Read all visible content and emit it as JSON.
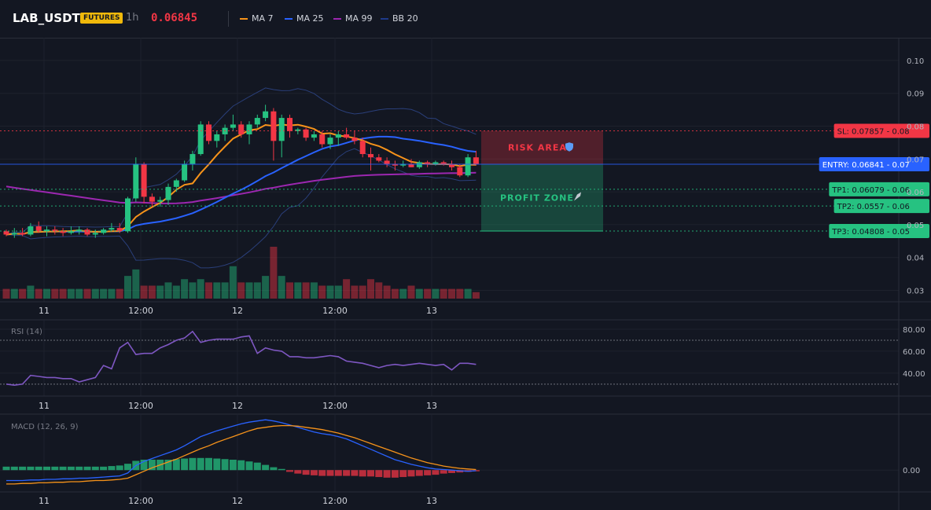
{
  "header": {
    "symbol": "LAB_USDT",
    "badge": "FUTURES",
    "timeframe": "1h",
    "last_price": "0.06845",
    "legend": [
      {
        "label": "MA 7",
        "color": "#f7931a"
      },
      {
        "label": "MA 25",
        "color": "#2962ff"
      },
      {
        "label": "MA 99",
        "color": "#9c27b0"
      },
      {
        "label": "BB 20",
        "color": "#1e3a8a"
      }
    ]
  },
  "colors": {
    "up": "#26c281",
    "down": "#f23645",
    "background": "#131722",
    "grid": "#1e222d"
  },
  "chart_data": [
    {
      "type": "candlestick",
      "panel": "price",
      "y_range": [
        0.0275,
        0.105
      ],
      "y_ticks": [
        "0.10",
        "0.09",
        "0.08",
        "0.07",
        "0.06",
        "0.05",
        "0.04",
        "0.03"
      ],
      "x_ticks": [
        "11",
        "12:00",
        "12",
        "12:00",
        "13"
      ],
      "x_tick_index": [
        6,
        18,
        30,
        42,
        54
      ],
      "candles": [
        [
          0.048,
          0.0485,
          0.0465,
          0.047
        ],
        [
          0.047,
          0.049,
          0.046,
          0.0475
        ],
        [
          0.0475,
          0.049,
          0.0465,
          0.047
        ],
        [
          0.047,
          0.0505,
          0.0465,
          0.0495
        ],
        [
          0.0495,
          0.051,
          0.0475,
          0.048
        ],
        [
          0.048,
          0.0495,
          0.0465,
          0.0485
        ],
        [
          0.0485,
          0.0495,
          0.047,
          0.048
        ],
        [
          0.048,
          0.049,
          0.0465,
          0.0475
        ],
        [
          0.0475,
          0.0495,
          0.047,
          0.048
        ],
        [
          0.048,
          0.0495,
          0.047,
          0.0485
        ],
        [
          0.0485,
          0.049,
          0.0465,
          0.047
        ],
        [
          0.047,
          0.0485,
          0.046,
          0.0475
        ],
        [
          0.0475,
          0.049,
          0.047,
          0.0485
        ],
        [
          0.0485,
          0.0505,
          0.048,
          0.049
        ],
        [
          0.049,
          0.0505,
          0.0475,
          0.048
        ],
        [
          0.048,
          0.0585,
          0.0475,
          0.058
        ],
        [
          0.058,
          0.0705,
          0.057,
          0.0685
        ],
        [
          0.0685,
          0.069,
          0.0565,
          0.0585
        ],
        [
          0.0585,
          0.0595,
          0.0555,
          0.057
        ],
        [
          0.057,
          0.0585,
          0.0555,
          0.0575
        ],
        [
          0.0575,
          0.0625,
          0.056,
          0.0615
        ],
        [
          0.0615,
          0.064,
          0.06,
          0.0635
        ],
        [
          0.0635,
          0.0695,
          0.063,
          0.0685
        ],
        [
          0.0685,
          0.0725,
          0.0665,
          0.0715
        ],
        [
          0.0715,
          0.0815,
          0.071,
          0.0805
        ],
        [
          0.0805,
          0.0815,
          0.0745,
          0.0755
        ],
        [
          0.0755,
          0.0785,
          0.0735,
          0.0775
        ],
        [
          0.0775,
          0.0805,
          0.0755,
          0.0795
        ],
        [
          0.0795,
          0.0835,
          0.0785,
          0.0805
        ],
        [
          0.0805,
          0.0815,
          0.0765,
          0.0775
        ],
        [
          0.0775,
          0.0815,
          0.0745,
          0.0805
        ],
        [
          0.0805,
          0.0835,
          0.0795,
          0.0825
        ],
        [
          0.0825,
          0.0865,
          0.0815,
          0.0845
        ],
        [
          0.0845,
          0.0855,
          0.0695,
          0.0755
        ],
        [
          0.0755,
          0.0835,
          0.0705,
          0.0825
        ],
        [
          0.0825,
          0.0835,
          0.0765,
          0.0785
        ],
        [
          0.0785,
          0.0795,
          0.0775,
          0.079
        ],
        [
          0.079,
          0.0795,
          0.0755,
          0.0765
        ],
        [
          0.0765,
          0.0785,
          0.0755,
          0.0775
        ],
        [
          0.0775,
          0.0785,
          0.0735,
          0.0745
        ],
        [
          0.0745,
          0.0775,
          0.073,
          0.0765
        ],
        [
          0.0765,
          0.0785,
          0.074,
          0.0775
        ],
        [
          0.0775,
          0.0795,
          0.076,
          0.0765
        ],
        [
          0.0765,
          0.0785,
          0.0745,
          0.0755
        ],
        [
          0.0755,
          0.0765,
          0.0705,
          0.0715
        ],
        [
          0.0715,
          0.0735,
          0.0665,
          0.0705
        ],
        [
          0.0705,
          0.0715,
          0.069,
          0.0695
        ],
        [
          0.0695,
          0.0705,
          0.0675,
          0.0685
        ],
        [
          0.0685,
          0.0695,
          0.0665,
          0.068
        ],
        [
          0.068,
          0.0695,
          0.0675,
          0.0685
        ],
        [
          0.0685,
          0.07,
          0.0675,
          0.0675
        ],
        [
          0.0675,
          0.0695,
          0.067,
          0.069
        ],
        [
          0.069,
          0.0695,
          0.0675,
          0.0685
        ],
        [
          0.0685,
          0.0695,
          0.068,
          0.069
        ],
        [
          0.069,
          0.0695,
          0.068,
          0.0685
        ],
        [
          0.0685,
          0.0695,
          0.0665,
          0.0675
        ],
        [
          0.0675,
          0.0685,
          0.0645,
          0.065
        ],
        [
          0.065,
          0.0715,
          0.0645,
          0.0705
        ],
        [
          0.0705,
          0.0725,
          0.068,
          0.06845
        ]
      ],
      "volume": [
        3,
        3,
        3,
        4,
        3,
        3,
        3,
        3,
        3,
        3,
        3,
        3,
        3,
        3,
        3,
        7,
        9,
        4,
        4,
        4,
        5,
        4,
        6,
        5,
        6,
        5,
        5,
        5,
        10,
        5,
        5,
        5,
        7,
        16,
        7,
        5,
        5,
        5,
        5,
        4,
        4,
        4,
        6,
        4,
        4,
        6,
        5,
        4,
        3,
        3,
        4,
        3,
        3,
        3,
        3,
        3,
        3,
        3,
        2
      ],
      "volume_max": 16,
      "levels": [
        {
          "label": "SL: 0.07857",
          "axis": "0.08",
          "value": 0.07857,
          "color": "#f23645"
        },
        {
          "label": "ENTRY: 0.06841",
          "axis": "0.07",
          "value": 0.06841,
          "color": "#2962ff"
        },
        {
          "label": "TP1: 0.06079",
          "axis": "0.06",
          "value": 0.06079,
          "color": "#26c281"
        },
        {
          "label": "TP2: 0.0557",
          "axis": "0.06",
          "value": 0.0557,
          "color": "#26c281"
        },
        {
          "label": "TP3: 0.04808",
          "axis": "0.05",
          "value": 0.04808,
          "color": "#26c281"
        }
      ],
      "zones": [
        {
          "label": "RISK AREA",
          "from": 0.06841,
          "to": 0.07857,
          "icon": "shield-icon"
        },
        {
          "label": "PROFIT ZONE",
          "from": 0.04808,
          "to": 0.06841,
          "icon": "rocket-icon"
        }
      ]
    },
    {
      "type": "line",
      "panel": "rsi",
      "title": "RSI (14)",
      "y_range": [
        22,
        85
      ],
      "y_ticks": [
        "80.00",
        "60.00",
        "40.00"
      ],
      "y_tick_values": [
        80,
        60,
        40
      ],
      "bands": [
        70,
        30
      ],
      "values": [
        30,
        29,
        30,
        38,
        37,
        36,
        36,
        35,
        35,
        32,
        34,
        36,
        47,
        44,
        63,
        68,
        57,
        58,
        58,
        63,
        66,
        70,
        72,
        78,
        68,
        70,
        71,
        71,
        71,
        73,
        74,
        58,
        63,
        61,
        60,
        55,
        55,
        54,
        54,
        55,
        56,
        55,
        51,
        50,
        49,
        47,
        45,
        47,
        48,
        47,
        48,
        49,
        48,
        47,
        48,
        43,
        49,
        49,
        48
      ],
      "color": "#7e57c2"
    },
    {
      "type": "line+bar",
      "panel": "macd",
      "title": "MACD (12, 26, 9)",
      "y_range": [
        -0.0035,
        0.009
      ],
      "y_ticks": [
        "0.00"
      ],
      "macd": [
        -0.0018,
        -0.0018,
        -0.0018,
        -0.0017,
        -0.0017,
        -0.0016,
        -0.0016,
        -0.0015,
        -0.0015,
        -0.0014,
        -0.0014,
        -0.0013,
        -0.0012,
        -0.0011,
        -0.001,
        -0.0005,
        0.0008,
        0.0015,
        0.002,
        0.0025,
        0.003,
        0.0035,
        0.0042,
        0.005,
        0.0058,
        0.0063,
        0.0068,
        0.0072,
        0.0076,
        0.008,
        0.0083,
        0.0085,
        0.0087,
        0.0085,
        0.0082,
        0.0078,
        0.0074,
        0.007,
        0.0066,
        0.0063,
        0.0061,
        0.0058,
        0.0054,
        0.0048,
        0.0042,
        0.0036,
        0.003,
        0.0024,
        0.0018,
        0.0014,
        0.001,
        0.0007,
        0.0004,
        0.0002,
        0.0001,
        0,
        -0.0001,
        -0.0002,
        -0.0001
      ],
      "signal": [
        -0.0024,
        -0.0024,
        -0.0023,
        -0.0023,
        -0.0022,
        -0.0022,
        -0.0021,
        -0.0021,
        -0.002,
        -0.002,
        -0.0019,
        -0.0018,
        -0.0018,
        -0.0017,
        -0.0016,
        -0.0014,
        -0.0008,
        -0.0002,
        0.0004,
        0.0009,
        0.0014,
        0.0019,
        0.0025,
        0.0031,
        0.0037,
        0.0042,
        0.0048,
        0.0053,
        0.0058,
        0.0063,
        0.0068,
        0.0072,
        0.0074,
        0.0076,
        0.0077,
        0.0077,
        0.0076,
        0.0074,
        0.0072,
        0.007,
        0.0067,
        0.0064,
        0.006,
        0.0056,
        0.0051,
        0.0046,
        0.0041,
        0.0036,
        0.0031,
        0.0026,
        0.0021,
        0.0017,
        0.0013,
        0.001,
        0.0007,
        0.0005,
        0.0003,
        0.0002,
        0.0001
      ],
      "histogram": [
        0.0006,
        0.0006,
        0.0006,
        0.0006,
        0.0006,
        0.0006,
        0.0006,
        0.0006,
        0.0006,
        0.0006,
        0.0006,
        0.0006,
        0.0006,
        0.0007,
        0.0008,
        0.0011,
        0.0016,
        0.0018,
        0.0018,
        0.0018,
        0.0018,
        0.0019,
        0.002,
        0.0021,
        0.0021,
        0.0021,
        0.002,
        0.0019,
        0.0018,
        0.0017,
        0.0015,
        0.0013,
        0.0009,
        0.0005,
        0.0002,
        -0.0003,
        -0.0006,
        -0.0008,
        -0.0009,
        -0.001,
        -0.001,
        -0.001,
        -0.001,
        -0.001,
        -0.0011,
        -0.0011,
        -0.0012,
        -0.0013,
        -0.0013,
        -0.0012,
        -0.0011,
        -0.001,
        -0.0009,
        -0.0008,
        -0.0006,
        -0.0005,
        -0.0004,
        -0.0003,
        -0.0002
      ],
      "macd_color": "#2962ff",
      "signal_color": "#f7931a"
    }
  ]
}
